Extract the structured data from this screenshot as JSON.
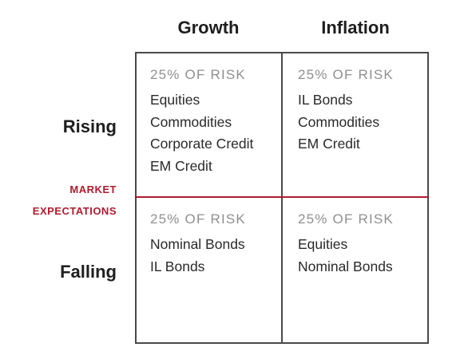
{
  "columns": [
    "Growth",
    "Inflation"
  ],
  "rows": [
    "Rising",
    "Falling"
  ],
  "axis_label": [
    "MARKET",
    "EXPECTATIONS"
  ],
  "cells": [
    {
      "header": "25% OF RISK",
      "items": [
        "Equities",
        "Commodities",
        "Corporate Credit",
        "EM Credit"
      ]
    },
    {
      "header": "25% OF RISK",
      "items": [
        "IL Bonds",
        "Commodities",
        "EM Credit"
      ]
    },
    {
      "header": "25% OF RISK",
      "items": [
        "Nominal Bonds",
        "IL Bonds"
      ]
    },
    {
      "header": "25% OF RISK",
      "items": [
        "Equities",
        "Nominal Bonds"
      ]
    }
  ],
  "colors": {
    "accent": "#b01c2e",
    "border": "#4a4a4a",
    "muted_text": "#8f8f8f",
    "text": "#2a2a2a"
  }
}
